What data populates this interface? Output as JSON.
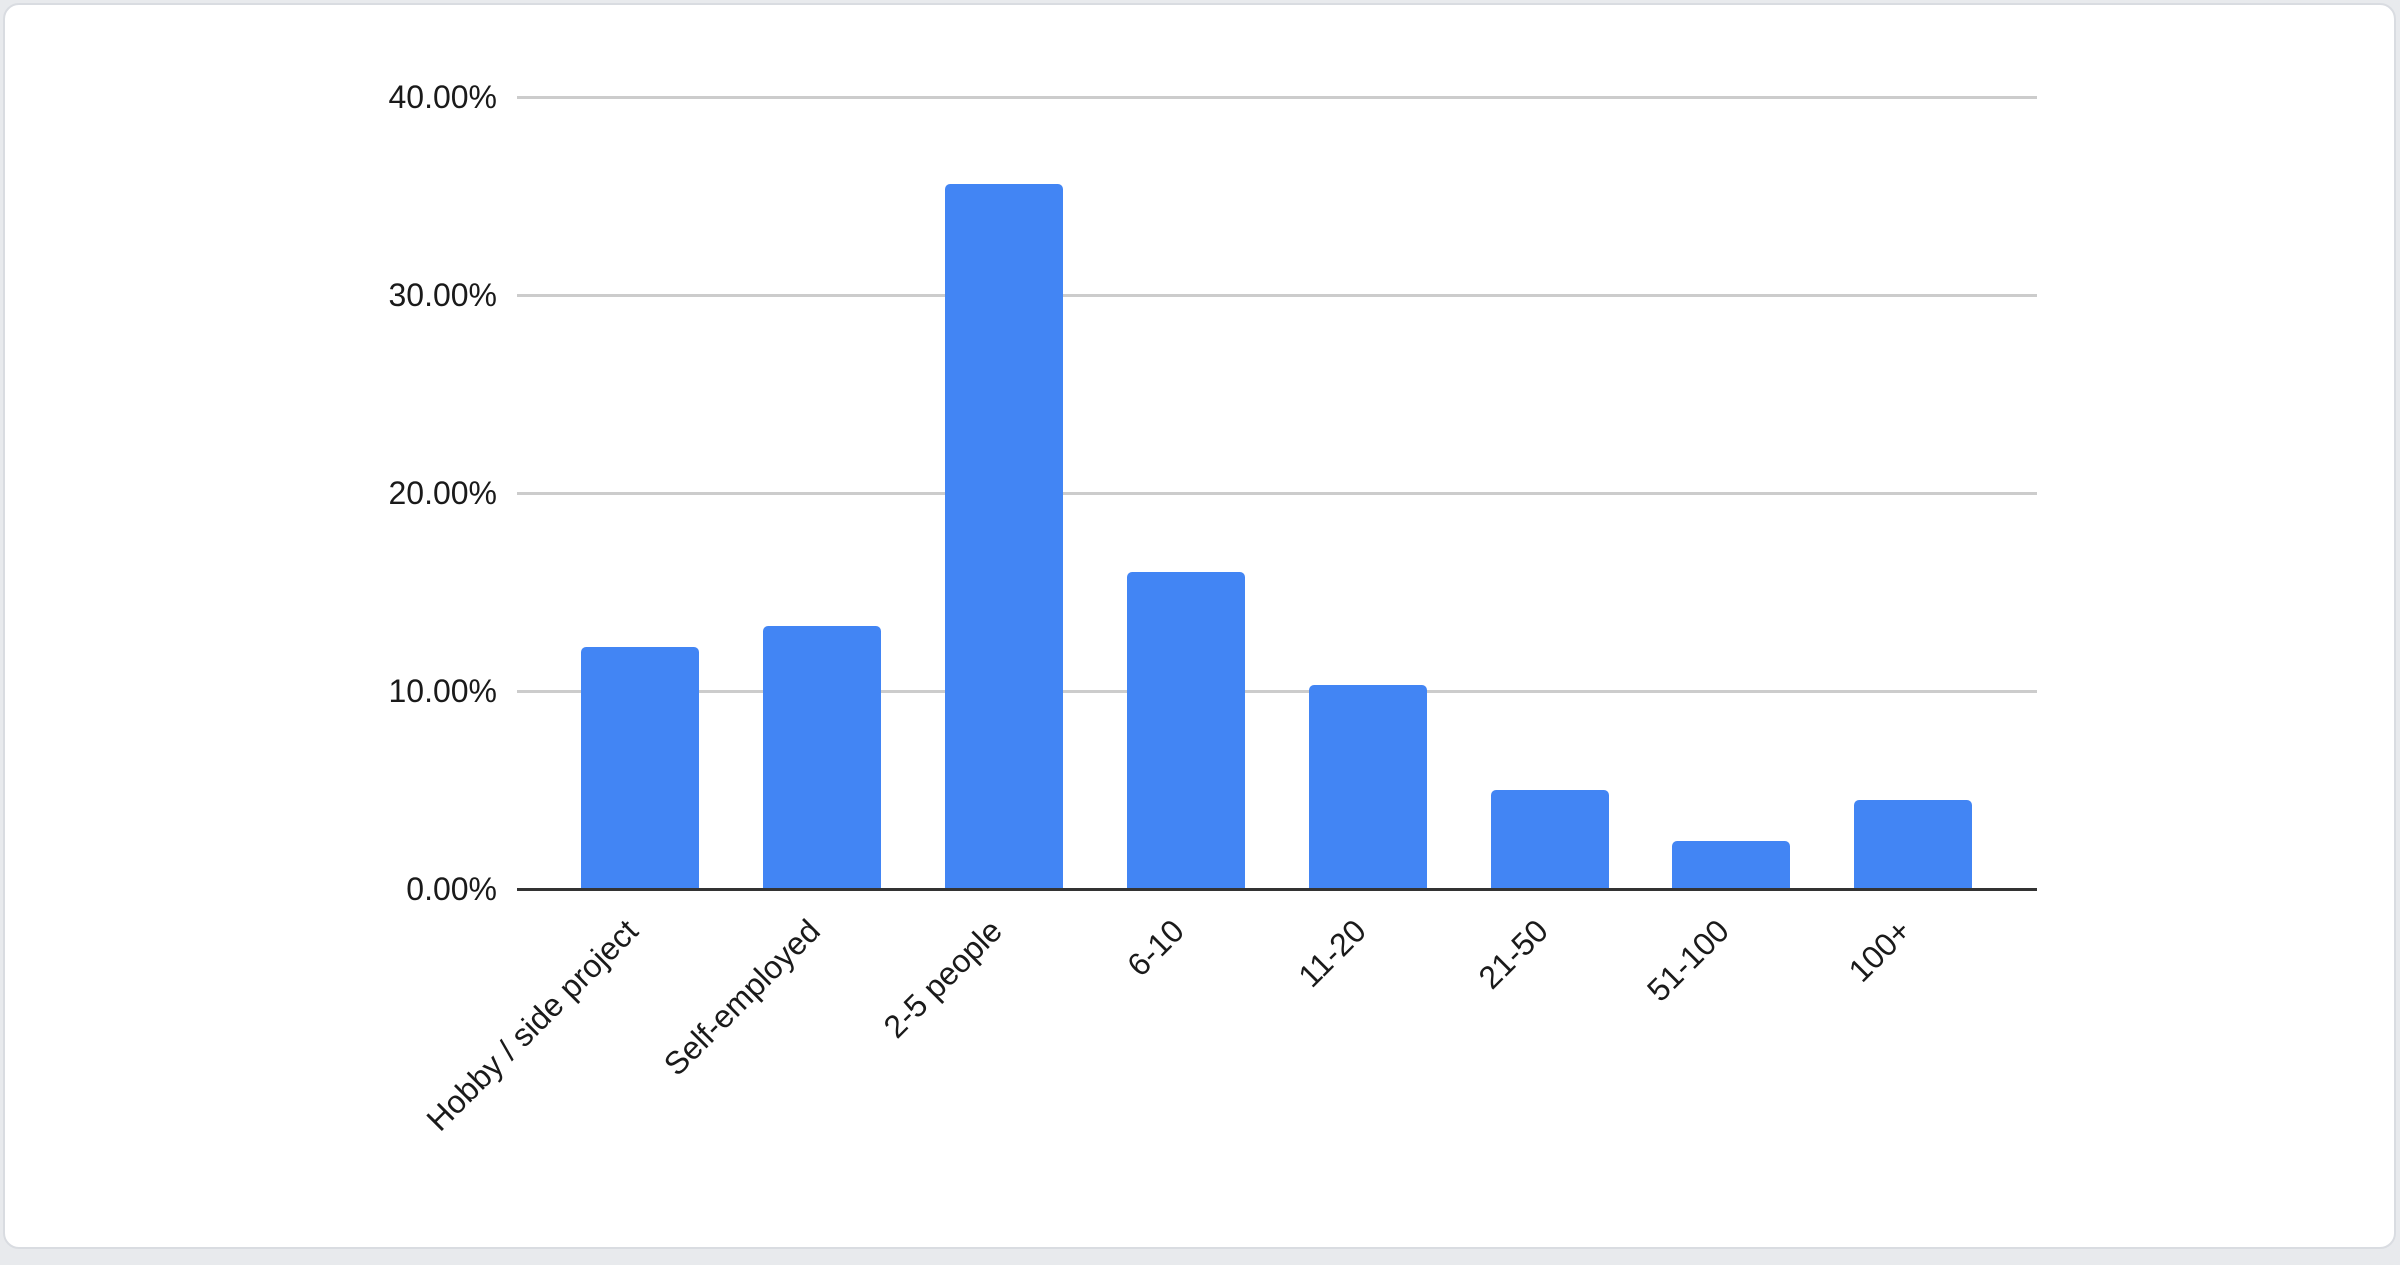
{
  "page": {
    "background_color": "#e8eaed"
  },
  "card": {
    "background_color": "#ffffff",
    "border_color": "#d9dce1"
  },
  "chart_data": {
    "type": "bar",
    "title": "",
    "xlabel": "",
    "ylabel": "",
    "categories": [
      "Hobby / side project",
      "Self-employed",
      "2-5 people",
      "6-10",
      "11-20",
      "21-50",
      "51-100",
      "100+"
    ],
    "values": [
      12.2,
      13.3,
      35.6,
      16.0,
      10.3,
      5.0,
      2.4,
      4.5
    ],
    "value_unit": "%",
    "ylim": [
      0,
      40
    ],
    "y_ticks": [
      {
        "value": 0,
        "label": "0.00%"
      },
      {
        "value": 10,
        "label": "10.00%"
      },
      {
        "value": 20,
        "label": "20.00%"
      },
      {
        "value": 30,
        "label": "30.00%"
      },
      {
        "value": 40,
        "label": "40.00%"
      }
    ],
    "grid": true,
    "legend_position": "none",
    "bar_color": "#4285f4",
    "gridline_color": "#cccccc",
    "axis_line_color": "#333333",
    "label_color": "#1a1a1a"
  }
}
